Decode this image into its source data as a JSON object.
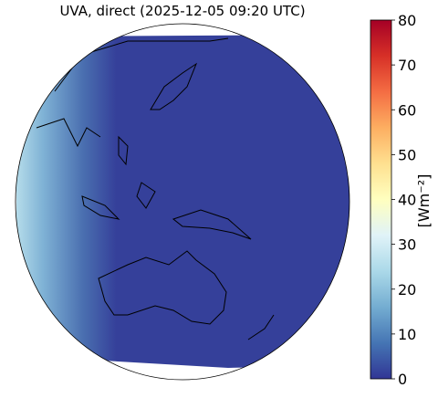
{
  "title": "UVA, direct (2025-12-05 09:20 UTC)",
  "colorbar": {
    "label": "[Wm⁻²]",
    "lim": [
      0,
      80
    ],
    "ticks": [
      0,
      10,
      20,
      30,
      40,
      50,
      60,
      70,
      80
    ]
  }
}
